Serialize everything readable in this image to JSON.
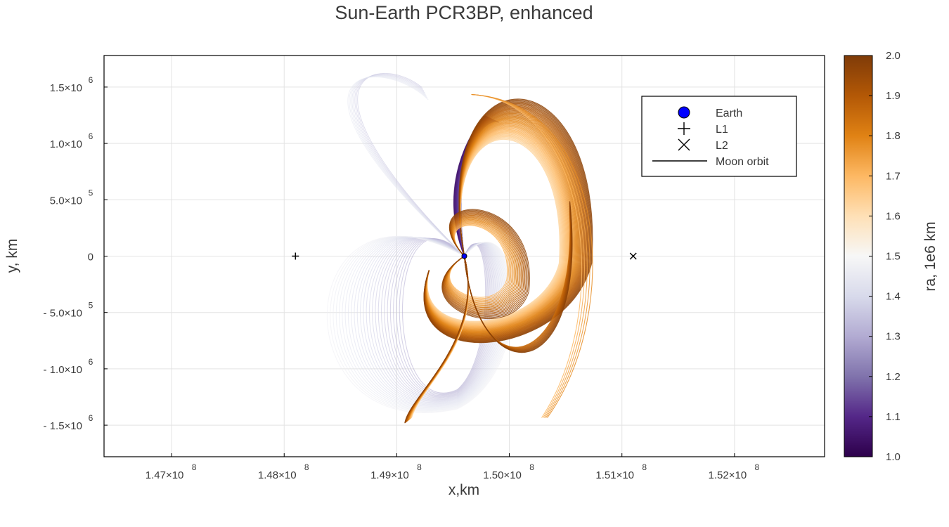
{
  "chart_data": {
    "type": "line",
    "title": "Sun-Earth PCR3BP, enhanced",
    "xlabel": "x,km",
    "ylabel": "y, km",
    "xlim": [
      146400000,
      152800000
    ],
    "ylim": [
      -1780000,
      1780000
    ],
    "x_ticks": [
      {
        "value": 147000000,
        "mantissa": "1.47×10",
        "exp": "8"
      },
      {
        "value": 148000000,
        "mantissa": "1.48×10",
        "exp": "8"
      },
      {
        "value": 149000000,
        "mantissa": "1.49×10",
        "exp": "8"
      },
      {
        "value": 150000000,
        "mantissa": "1.50×10",
        "exp": "8"
      },
      {
        "value": 151000000,
        "mantissa": "1.51×10",
        "exp": "8"
      },
      {
        "value": 152000000,
        "mantissa": "1.52×10",
        "exp": "8"
      }
    ],
    "y_ticks": [
      {
        "value": 1500000,
        "mantissa": "1.5×10",
        "exp": "6"
      },
      {
        "value": 1000000,
        "mantissa": "1.0×10",
        "exp": "6"
      },
      {
        "value": 500000,
        "mantissa": "5.0×10",
        "exp": "5"
      },
      {
        "value": 0,
        "mantissa": "0",
        "exp": ""
      },
      {
        "value": -500000,
        "mantissa": "- 5.0×10",
        "exp": "5"
      },
      {
        "value": -1000000,
        "mantissa": "- 1.0×10",
        "exp": "6"
      },
      {
        "value": -1500000,
        "mantissa": "- 1.5×10",
        "exp": "6"
      }
    ],
    "grid": true,
    "legend_position": "top-right",
    "legend": [
      {
        "label": "Earth",
        "marker": "circle",
        "color": "#0000ff"
      },
      {
        "label": "L1",
        "marker": "plus",
        "color": "#000000"
      },
      {
        "label": "L2",
        "marker": "x",
        "color": "#000000"
      },
      {
        "label": "Moon orbit",
        "marker": "line",
        "color": "#000000"
      }
    ],
    "points": {
      "earth": {
        "x": 149600000,
        "y": 0
      },
      "L1": {
        "x": 148100000,
        "y": 0
      },
      "L2": {
        "x": 151100000,
        "y": 0
      }
    },
    "colorbar": {
      "label": "ra, 1e6 km",
      "range": [
        1.0,
        2.0
      ],
      "ticks": [
        "1.0",
        "1.1",
        "1.2",
        "1.3",
        "1.4",
        "1.5",
        "1.6",
        "1.7",
        "1.8",
        "1.9",
        "2.0"
      ],
      "colormap": [
        "#2d004b",
        "#542788",
        "#8073ac",
        "#b2abd2",
        "#d8daeb",
        "#f7f7f7",
        "#fee0b6",
        "#fdb863",
        "#e08214",
        "#b35806",
        "#7f3b08"
      ]
    }
  }
}
